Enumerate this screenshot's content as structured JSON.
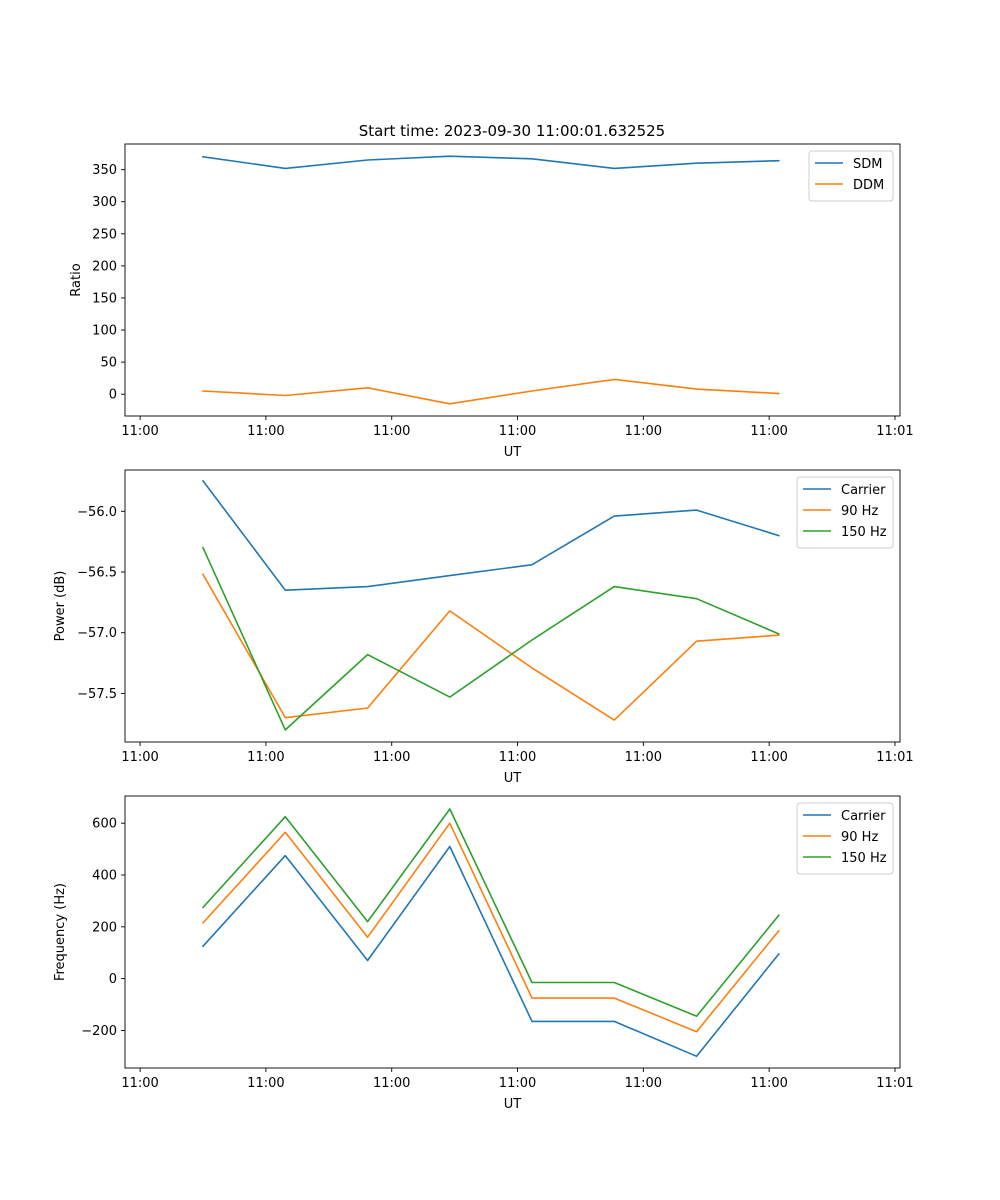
{
  "figure_title": "Start time: 2023-09-30 11:00:01.632525",
  "colors": {
    "blue": "#1f77b4",
    "orange": "#ff7f0e",
    "green": "#2ca02c"
  },
  "chart_data": [
    {
      "type": "line",
      "title": "Start time: 2023-09-30 11:00:01.632525",
      "xlabel": "UT",
      "ylabel": "Ratio",
      "x": [
        0.5,
        1.154,
        1.808,
        2.462,
        3.115,
        3.769,
        4.423,
        5.077
      ],
      "xlim": [
        -0.12,
        6.04
      ],
      "xticks": [
        0,
        1,
        2,
        3,
        4,
        5,
        6
      ],
      "xtick_labels": [
        "11:00",
        "11:00",
        "11:00",
        "11:00",
        "11:00",
        "11:00",
        "11:01"
      ],
      "ylim": [
        -34,
        390
      ],
      "yticks": [
        0,
        50,
        100,
        150,
        200,
        250,
        300,
        350
      ],
      "ytick_labels": [
        "0",
        "50",
        "100",
        "150",
        "200",
        "250",
        "300",
        "350"
      ],
      "legend_position": "top-right",
      "series": [
        {
          "name": "SDM",
          "color": "#1f77b4",
          "values": [
            370,
            352,
            365,
            371,
            367,
            352,
            360,
            364
          ]
        },
        {
          "name": "DDM",
          "color": "#ff7f0e",
          "values": [
            5,
            -2,
            10,
            -15,
            5,
            23,
            8,
            1
          ]
        }
      ]
    },
    {
      "type": "line",
      "title": "",
      "xlabel": "UT",
      "ylabel": "Power (dB)",
      "x": [
        0.5,
        1.154,
        1.808,
        2.462,
        3.115,
        3.769,
        4.423,
        5.077
      ],
      "xlim": [
        -0.12,
        6.04
      ],
      "xticks": [
        0,
        1,
        2,
        3,
        4,
        5,
        6
      ],
      "xtick_labels": [
        "11:00",
        "11:00",
        "11:00",
        "11:00",
        "11:00",
        "11:00",
        "11:01"
      ],
      "ylim": [
        -57.9,
        -55.66
      ],
      "yticks": [
        -57.5,
        -57.0,
        -56.5,
        -56.0
      ],
      "ytick_labels": [
        "−57.5",
        "−57.0",
        "−56.5",
        "−56.0"
      ],
      "legend_position": "top-right",
      "series": [
        {
          "name": "Carrier",
          "color": "#1f77b4",
          "values": [
            -55.75,
            -56.65,
            -56.62,
            -56.53,
            -56.44,
            -56.04,
            -55.99,
            -56.2
          ]
        },
        {
          "name": "90 Hz",
          "color": "#ff7f0e",
          "values": [
            -56.52,
            -57.7,
            -57.62,
            -56.82,
            -57.29,
            -57.72,
            -57.07,
            -57.02
          ]
        },
        {
          "name": "150 Hz",
          "color": "#2ca02c",
          "values": [
            -56.3,
            -57.8,
            -57.18,
            -57.53,
            -57.06,
            -56.62,
            -56.72,
            -57.01
          ]
        }
      ]
    },
    {
      "type": "line",
      "title": "",
      "xlabel": "UT",
      "ylabel": "Frequency (Hz)",
      "x": [
        0.5,
        1.154,
        1.808,
        2.462,
        3.115,
        3.769,
        4.423,
        5.077
      ],
      "xlim": [
        -0.12,
        6.04
      ],
      "xticks": [
        0,
        1,
        2,
        3,
        4,
        5,
        6
      ],
      "xtick_labels": [
        "11:00",
        "11:00",
        "11:00",
        "11:00",
        "11:00",
        "11:00",
        "11:01"
      ],
      "ylim": [
        -345,
        705
      ],
      "yticks": [
        -200,
        0,
        200,
        400,
        600
      ],
      "ytick_labels": [
        "−200",
        "0",
        "200",
        "400",
        "600"
      ],
      "legend_position": "top-right",
      "series": [
        {
          "name": "Carrier",
          "color": "#1f77b4",
          "values": [
            125,
            475,
            70,
            510,
            -165,
            -165,
            -300,
            95
          ]
        },
        {
          "name": "90 Hz",
          "color": "#ff7f0e",
          "values": [
            215,
            565,
            160,
            600,
            -75,
            -75,
            -205,
            185
          ]
        },
        {
          "name": "150 Hz",
          "color": "#2ca02c",
          "values": [
            275,
            625,
            220,
            655,
            -15,
            -15,
            -145,
            245
          ]
        }
      ]
    }
  ]
}
